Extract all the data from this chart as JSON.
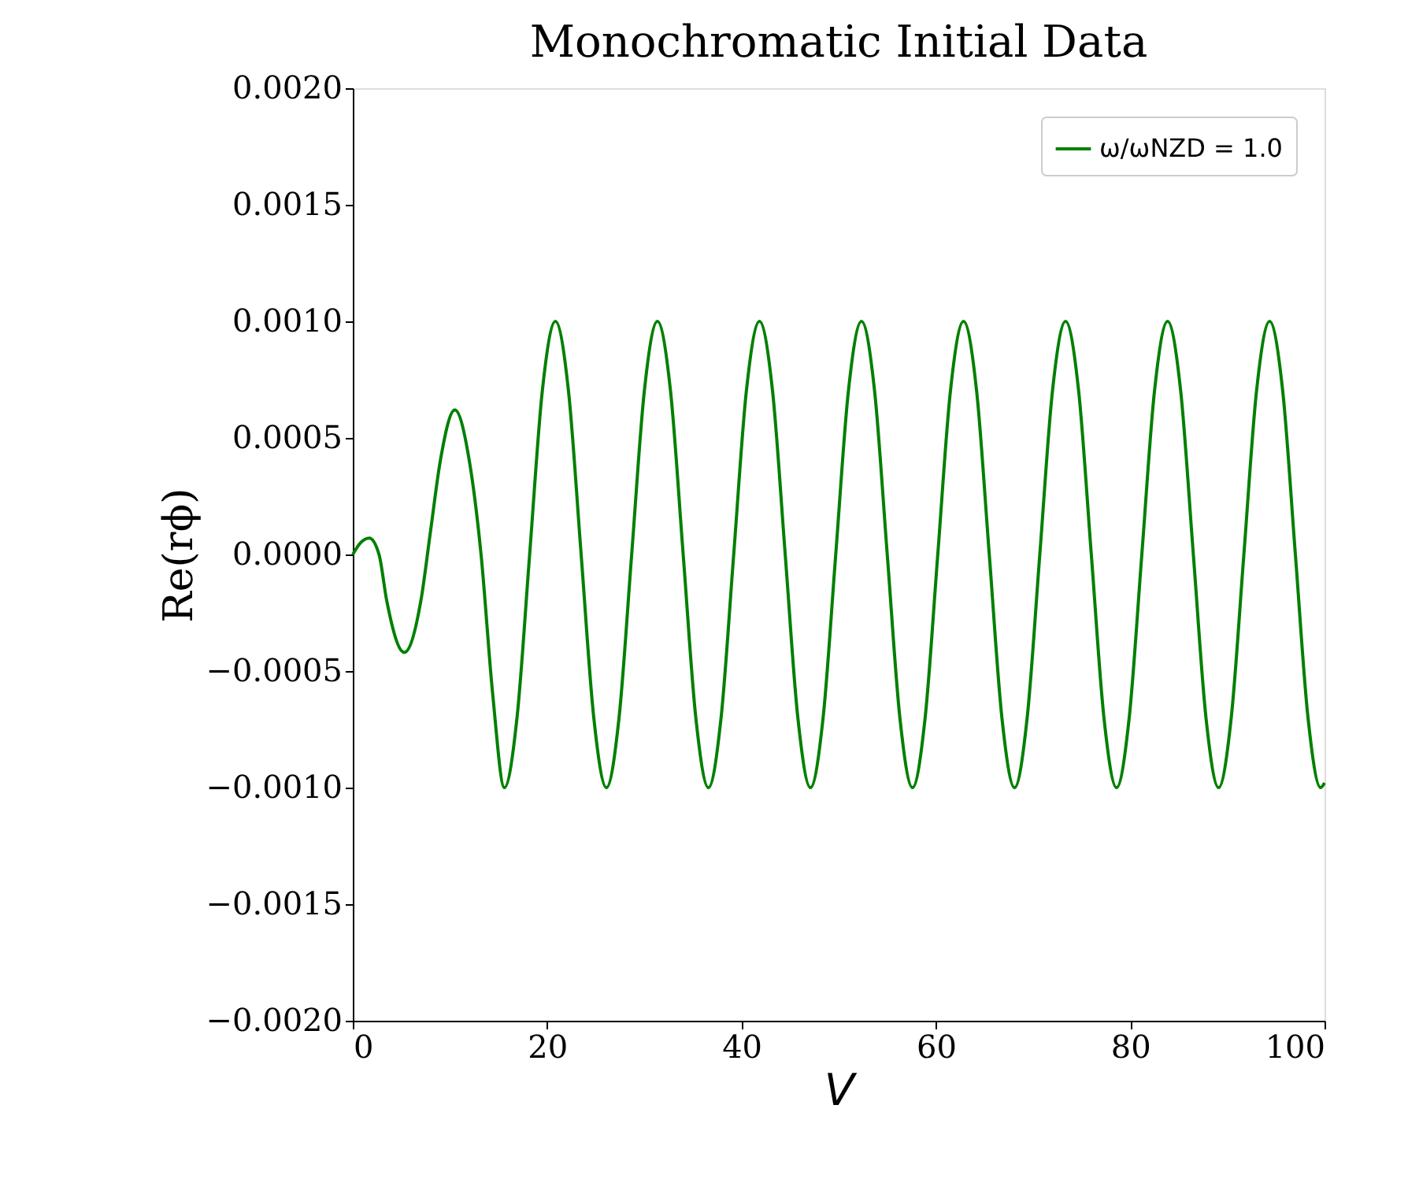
{
  "chart_data": {
    "type": "line",
    "title": "Monochromatic Initial Data",
    "xlabel": "V",
    "ylabel": "Re(rϕ)",
    "x": [
      0,
      0.8,
      1.7,
      2.7,
      3.5,
      5.3,
      7.0,
      8.0,
      9.0,
      10.5,
      12.0,
      13.2,
      14.4,
      15.6,
      16.9,
      18.2,
      19.5,
      20.85,
      22.2,
      23.5,
      24.8,
      26.1,
      27.4,
      28.7,
      30.0,
      31.35,
      32.7,
      34.0,
      35.3,
      36.6,
      37.9,
      39.2,
      40.5,
      41.85,
      43.2,
      44.5,
      45.8,
      47.1,
      48.4,
      49.7,
      51.0,
      52.35,
      53.7,
      55.0,
      56.3,
      57.6,
      58.9,
      60.2,
      61.5,
      62.85,
      64.2,
      65.5,
      66.8,
      68.1,
      69.4,
      70.7,
      72.0,
      73.35,
      74.7,
      76.0,
      77.3,
      78.6,
      79.9,
      81.2,
      82.5,
      83.85,
      85.2,
      86.5,
      87.8,
      89.1,
      90.4,
      91.7,
      93.0,
      94.35,
      95.7,
      97.0,
      98.3,
      99.6,
      100
    ],
    "series": [
      {
        "name": "ω/ωNZD = 1.0",
        "color": "#008000",
        "values": [
          0,
          5e-05,
          7e-05,
          0.0,
          -0.0002,
          -0.00042,
          -0.0002,
          0.0001,
          0.0004,
          0.00062,
          0.0004,
          0.0,
          -0.0006,
          -0.001,
          -0.0007,
          0,
          0.0007,
          0.001,
          0.0007,
          0,
          -0.0007,
          -0.001,
          -0.0007,
          0,
          0.0007,
          0.001,
          0.0007,
          0,
          -0.0007,
          -0.001,
          -0.0007,
          0,
          0.0007,
          0.001,
          0.0007,
          0,
          -0.0007,
          -0.001,
          -0.0007,
          0,
          0.0007,
          0.001,
          0.0007,
          0,
          -0.0007,
          -0.001,
          -0.0007,
          0,
          0.0007,
          0.001,
          0.0007,
          0,
          -0.0007,
          -0.001,
          -0.0007,
          0,
          0.0007,
          0.001,
          0.0007,
          0,
          -0.0007,
          -0.001,
          -0.0007,
          0,
          0.0007,
          0.001,
          0.0007,
          0,
          -0.0007,
          -0.001,
          -0.0007,
          0,
          0.0007,
          0.001,
          0.0007,
          0,
          -0.0007,
          -0.001,
          -0.00098
        ]
      }
    ],
    "xlim": [
      0,
      100
    ],
    "xticks": [
      0,
      20,
      40,
      60,
      80,
      100
    ],
    "ylim": [
      -0.002,
      0.002
    ],
    "yticks": [
      {
        "value": -0.002,
        "label": "−0.0020"
      },
      {
        "value": -0.0015,
        "label": "−0.0015"
      },
      {
        "value": -0.001,
        "label": "−0.0010"
      },
      {
        "value": -0.0005,
        "label": "−0.0005"
      },
      {
        "value": 0,
        "label": "0.0000"
      },
      {
        "value": 0.0005,
        "label": "0.0005"
      },
      {
        "value": 0.001,
        "label": "0.0010"
      },
      {
        "value": 0.0015,
        "label": "0.0015"
      },
      {
        "value": 0.002,
        "label": "0.0020"
      }
    ],
    "legend": "top right",
    "grid": false,
    "line_style": "solid"
  }
}
